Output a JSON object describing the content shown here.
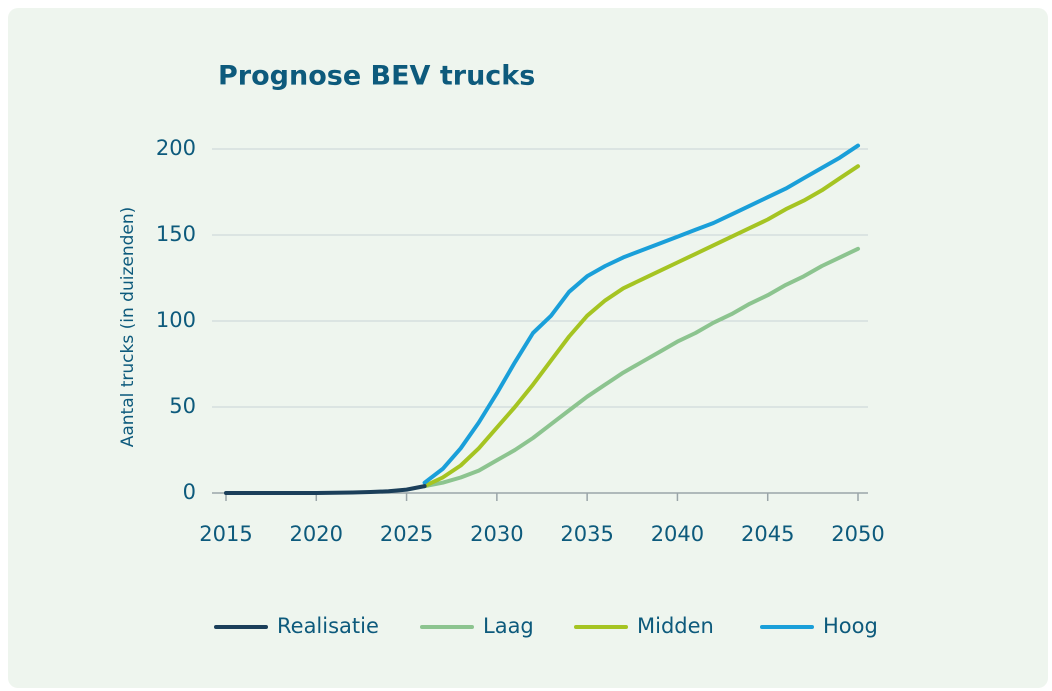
{
  "chart_data": {
    "type": "line",
    "title": "Prognose BEV trucks",
    "ylabel": "Aantal trucks (in duizenden)",
    "xlim": [
      2015,
      2050
    ],
    "xticks": [
      2015,
      2020,
      2025,
      2030,
      2035,
      2040,
      2045,
      2050
    ],
    "ylim": [
      0,
      200
    ],
    "yticks": [
      0,
      50,
      100,
      150,
      200
    ],
    "grid": true,
    "legend": "bottom",
    "series": [
      {
        "name": "Realisatie",
        "color": "#1b3f5a",
        "x": [
          2015,
          2016,
          2017,
          2018,
          2019,
          2020,
          2021,
          2022,
          2023,
          2024,
          2025,
          2026
        ],
        "values": [
          0,
          0,
          0,
          0,
          0,
          0,
          0.1,
          0.3,
          0.6,
          1,
          2,
          4
        ]
      },
      {
        "name": "Laag",
        "color": "#8cc48f",
        "x": [
          2026,
          2027,
          2028,
          2029,
          2030,
          2031,
          2032,
          2033,
          2034,
          2035,
          2036,
          2037,
          2038,
          2039,
          2040,
          2041,
          2042,
          2043,
          2044,
          2045,
          2046,
          2047,
          2048,
          2049,
          2050
        ],
        "values": [
          4,
          6,
          9,
          13,
          19,
          25,
          32,
          40,
          48,
          56,
          63,
          70,
          76,
          82,
          88,
          93,
          99,
          104,
          110,
          115,
          121,
          126,
          132,
          137,
          142
        ]
      },
      {
        "name": "Midden",
        "color": "#a5c422",
        "x": [
          2026,
          2027,
          2028,
          2029,
          2030,
          2031,
          2032,
          2033,
          2034,
          2035,
          2036,
          2037,
          2038,
          2039,
          2040,
          2041,
          2042,
          2043,
          2044,
          2045,
          2046,
          2047,
          2048,
          2049,
          2050
        ],
        "values": [
          4,
          9,
          16,
          26,
          38,
          50,
          63,
          77,
          91,
          103,
          112,
          119,
          124,
          129,
          134,
          139,
          144,
          149,
          154,
          159,
          165,
          170,
          176,
          183,
          190
        ]
      },
      {
        "name": "Hoog",
        "color": "#1a9fd9",
        "x": [
          2026,
          2027,
          2028,
          2029,
          2030,
          2031,
          2032,
          2033,
          2034,
          2035,
          2036,
          2037,
          2038,
          2039,
          2040,
          2041,
          2042,
          2043,
          2044,
          2045,
          2046,
          2047,
          2048,
          2049,
          2050
        ],
        "values": [
          6,
          14,
          26,
          41,
          58,
          76,
          93,
          103,
          117,
          126,
          132,
          137,
          141,
          145,
          149,
          153,
          157,
          162,
          167,
          172,
          177,
          183,
          189,
          195,
          202
        ]
      }
    ]
  }
}
